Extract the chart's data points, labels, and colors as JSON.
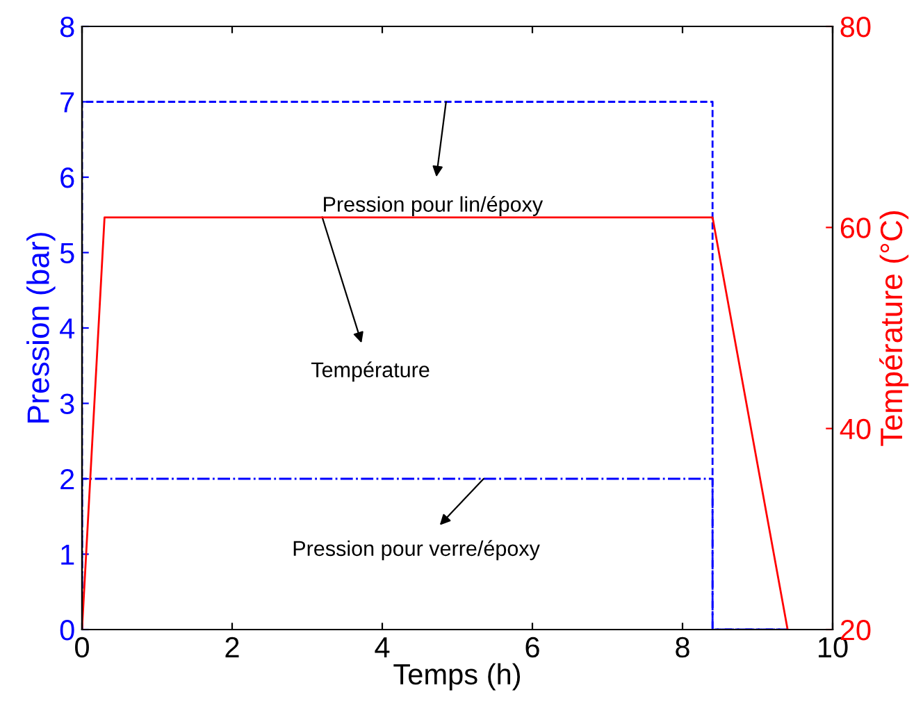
{
  "chart_data": {
    "type": "line",
    "xlabel": "Temps (h)",
    "ylabel": "Pression (bar)",
    "y2label": "Température (°C)",
    "xlim": [
      0,
      10
    ],
    "xticks": [
      0,
      2,
      4,
      6,
      8,
      10
    ],
    "ylim": [
      0,
      8
    ],
    "yticks": [
      0,
      1,
      2,
      3,
      4,
      5,
      6,
      7,
      8
    ],
    "y2lim": [
      20,
      80
    ],
    "y2ticks": [
      20,
      40,
      60,
      80
    ],
    "grid": false,
    "legend": false,
    "marker": "none",
    "series": [
      {
        "color": "#0000ff",
        "line_style": "dashed",
        "x": [
          0,
          0,
          8.4,
          8.4,
          9.4
        ],
        "values": [
          0,
          7,
          7,
          0,
          0
        ]
      },
      {
        "color": "#ff0000",
        "line_style": "solid",
        "axis": "y2",
        "x": [
          0,
          0.3,
          8.4,
          9.4
        ],
        "values": [
          20,
          61,
          61,
          20
        ]
      },
      {
        "color": "#0000ff",
        "line_style": "dashdot",
        "x": [
          0,
          0,
          8.4,
          8.4,
          9.4
        ],
        "values": [
          0,
          2,
          2,
          0,
          0
        ]
      }
    ],
    "annotations": [
      {
        "text": "Pression pour lin/époxy",
        "x": 4.85,
        "y": 7
      },
      {
        "text": "Température",
        "x": 3.2,
        "y": 5.47
      },
      {
        "text": "Pression pour verre/époxy",
        "x": 5.35,
        "y": 2
      }
    ]
  }
}
